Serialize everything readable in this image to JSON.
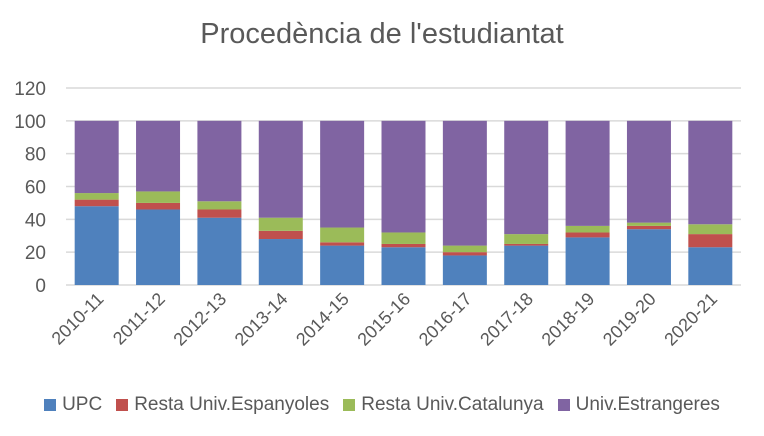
{
  "chart_data": {
    "type": "bar",
    "stacked": true,
    "title": "Procedència de l'estudiantat",
    "xlabel": "",
    "ylabel": "",
    "ylim": [
      0,
      120
    ],
    "yticks": [
      0,
      20,
      40,
      60,
      80,
      100,
      120
    ],
    "grid": true,
    "legend_position": "bottom",
    "categories": [
      "2010-11",
      "2011-12",
      "2012-13",
      "2013-14",
      "2014-15",
      "2015-16",
      "2016-17",
      "2017-18",
      "2018-19",
      "2019-20",
      "2020-21"
    ],
    "series": [
      {
        "name": "UPC",
        "color": "#4f81bd",
        "values": [
          48,
          46,
          41,
          28,
          24,
          23,
          18,
          24,
          29,
          34,
          23
        ]
      },
      {
        "name": "Resta Univ.Espanyoles",
        "color": "#c0504d",
        "values": [
          4,
          4,
          5,
          5,
          2,
          2,
          2,
          1,
          3,
          2,
          8
        ]
      },
      {
        "name": "Resta Univ.Catalunya",
        "color": "#9bbb59",
        "values": [
          4,
          7,
          5,
          8,
          9,
          7,
          4,
          6,
          4,
          2,
          6
        ]
      },
      {
        "name": "Univ.Estrangeres",
        "color": "#8064a2",
        "values": [
          44,
          43,
          49,
          59,
          65,
          68,
          76,
          69,
          64,
          62,
          63
        ]
      }
    ]
  },
  "colors": {
    "gridline": "#d9d9d9",
    "text": "#595959"
  }
}
